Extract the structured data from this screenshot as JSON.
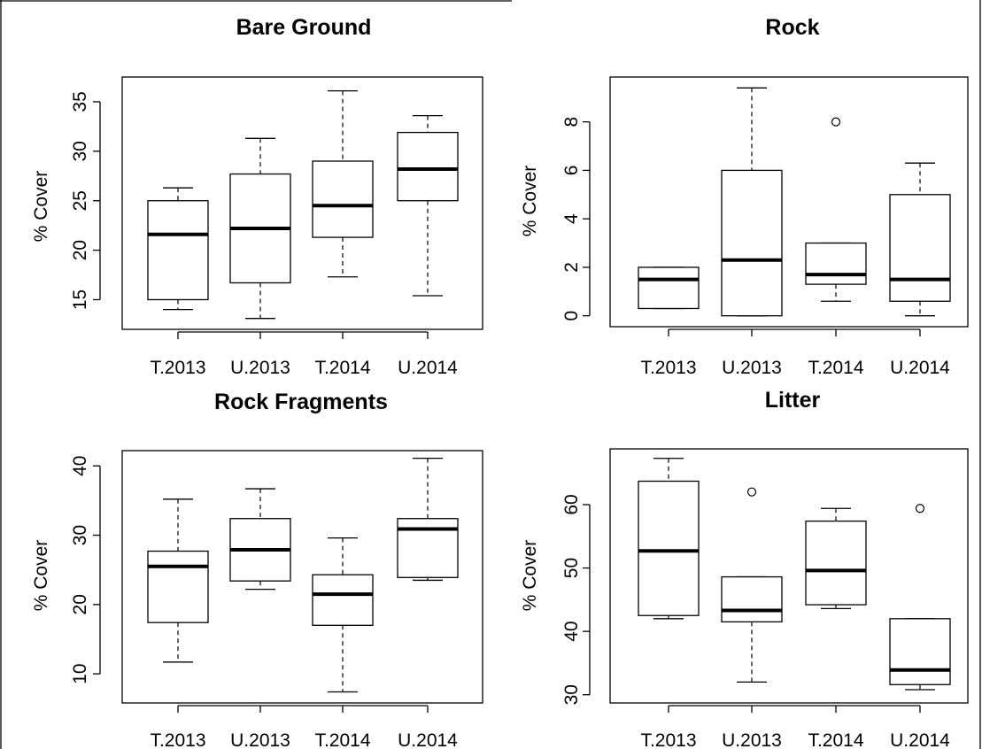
{
  "chart_data": [
    {
      "type": "box",
      "title": "Bare Ground",
      "ylabel": "% Cover",
      "categories": [
        "T.2013",
        "U.2013",
        "T.2014",
        "U.2014"
      ],
      "yticks": [
        15,
        20,
        25,
        30,
        35
      ],
      "ylim": [
        12,
        37.5
      ],
      "boxes": [
        {
          "whisker_low": 14.0,
          "q1": 15.0,
          "median": 21.6,
          "q3": 25.0,
          "whisker_high": 26.3,
          "outliers": []
        },
        {
          "whisker_low": 13.1,
          "q1": 16.7,
          "median": 22.2,
          "q3": 27.7,
          "whisker_high": 31.3,
          "outliers": []
        },
        {
          "whisker_low": 17.3,
          "q1": 21.3,
          "median": 24.5,
          "q3": 29.0,
          "whisker_high": 36.1,
          "outliers": []
        },
        {
          "whisker_low": 15.4,
          "q1": 25.0,
          "median": 28.2,
          "q3": 31.9,
          "whisker_high": 33.6,
          "outliers": []
        }
      ]
    },
    {
      "type": "box",
      "title": "Rock",
      "ylabel": "% Cover",
      "categories": [
        "T.2013",
        "U.2013",
        "T.2014",
        "U.2014"
      ],
      "yticks": [
        0,
        2,
        4,
        6,
        8
      ],
      "ylim": [
        -0.45,
        9.85
      ],
      "boxes": [
        {
          "whisker_low": 0.3,
          "q1": 0.3,
          "median": 1.5,
          "q3": 2.0,
          "whisker_high": 2.0,
          "outliers": []
        },
        {
          "whisker_low": 0.0,
          "q1": 0.0,
          "median": 2.3,
          "q3": 6.0,
          "whisker_high": 9.4,
          "outliers": []
        },
        {
          "whisker_low": 0.6,
          "q1": 1.3,
          "median": 1.7,
          "q3": 3.0,
          "whisker_high": 3.0,
          "outliers": [
            8.0
          ]
        },
        {
          "whisker_low": 0.0,
          "q1": 0.6,
          "median": 1.5,
          "q3": 5.0,
          "whisker_high": 6.3,
          "outliers": []
        }
      ]
    },
    {
      "type": "box",
      "title": "Rock Fragments",
      "ylabel": "% Cover",
      "categories": [
        "T.2013",
        "U.2013",
        "T.2014",
        "U.2014"
      ],
      "yticks": [
        10,
        20,
        30,
        40
      ],
      "ylim": [
        5.8,
        42.2
      ],
      "boxes": [
        {
          "whisker_low": 11.7,
          "q1": 17.4,
          "median": 25.5,
          "q3": 27.7,
          "whisker_high": 35.2,
          "outliers": []
        },
        {
          "whisker_low": 22.2,
          "q1": 23.4,
          "median": 27.9,
          "q3": 32.4,
          "whisker_high": 36.7,
          "outliers": []
        },
        {
          "whisker_low": 7.4,
          "q1": 17.0,
          "median": 21.5,
          "q3": 24.3,
          "whisker_high": 29.6,
          "outliers": []
        },
        {
          "whisker_low": 23.5,
          "q1": 23.9,
          "median": 30.9,
          "q3": 32.4,
          "whisker_high": 41.1,
          "outliers": []
        }
      ]
    },
    {
      "type": "box",
      "title": "Litter",
      "ylabel": "% Cover",
      "categories": [
        "T.2013",
        "U.2013",
        "T.2014",
        "U.2014"
      ],
      "yticks": [
        30,
        40,
        50,
        60
      ],
      "ylim": [
        28.7,
        68.8
      ],
      "boxes": [
        {
          "whisker_low": 42.0,
          "q1": 42.5,
          "median": 52.7,
          "q3": 63.7,
          "whisker_high": 67.3,
          "outliers": []
        },
        {
          "whisker_low": 32.0,
          "q1": 41.5,
          "median": 43.3,
          "q3": 48.6,
          "whisker_high": 48.6,
          "outliers": [
            62.0
          ]
        },
        {
          "whisker_low": 43.6,
          "q1": 44.2,
          "median": 49.6,
          "q3": 57.4,
          "whisker_high": 59.4,
          "outliers": []
        },
        {
          "whisker_low": 30.8,
          "q1": 31.6,
          "median": 33.9,
          "q3": 42.0,
          "whisker_high": 42.0,
          "outliers": [
            59.4
          ]
        }
      ]
    }
  ]
}
